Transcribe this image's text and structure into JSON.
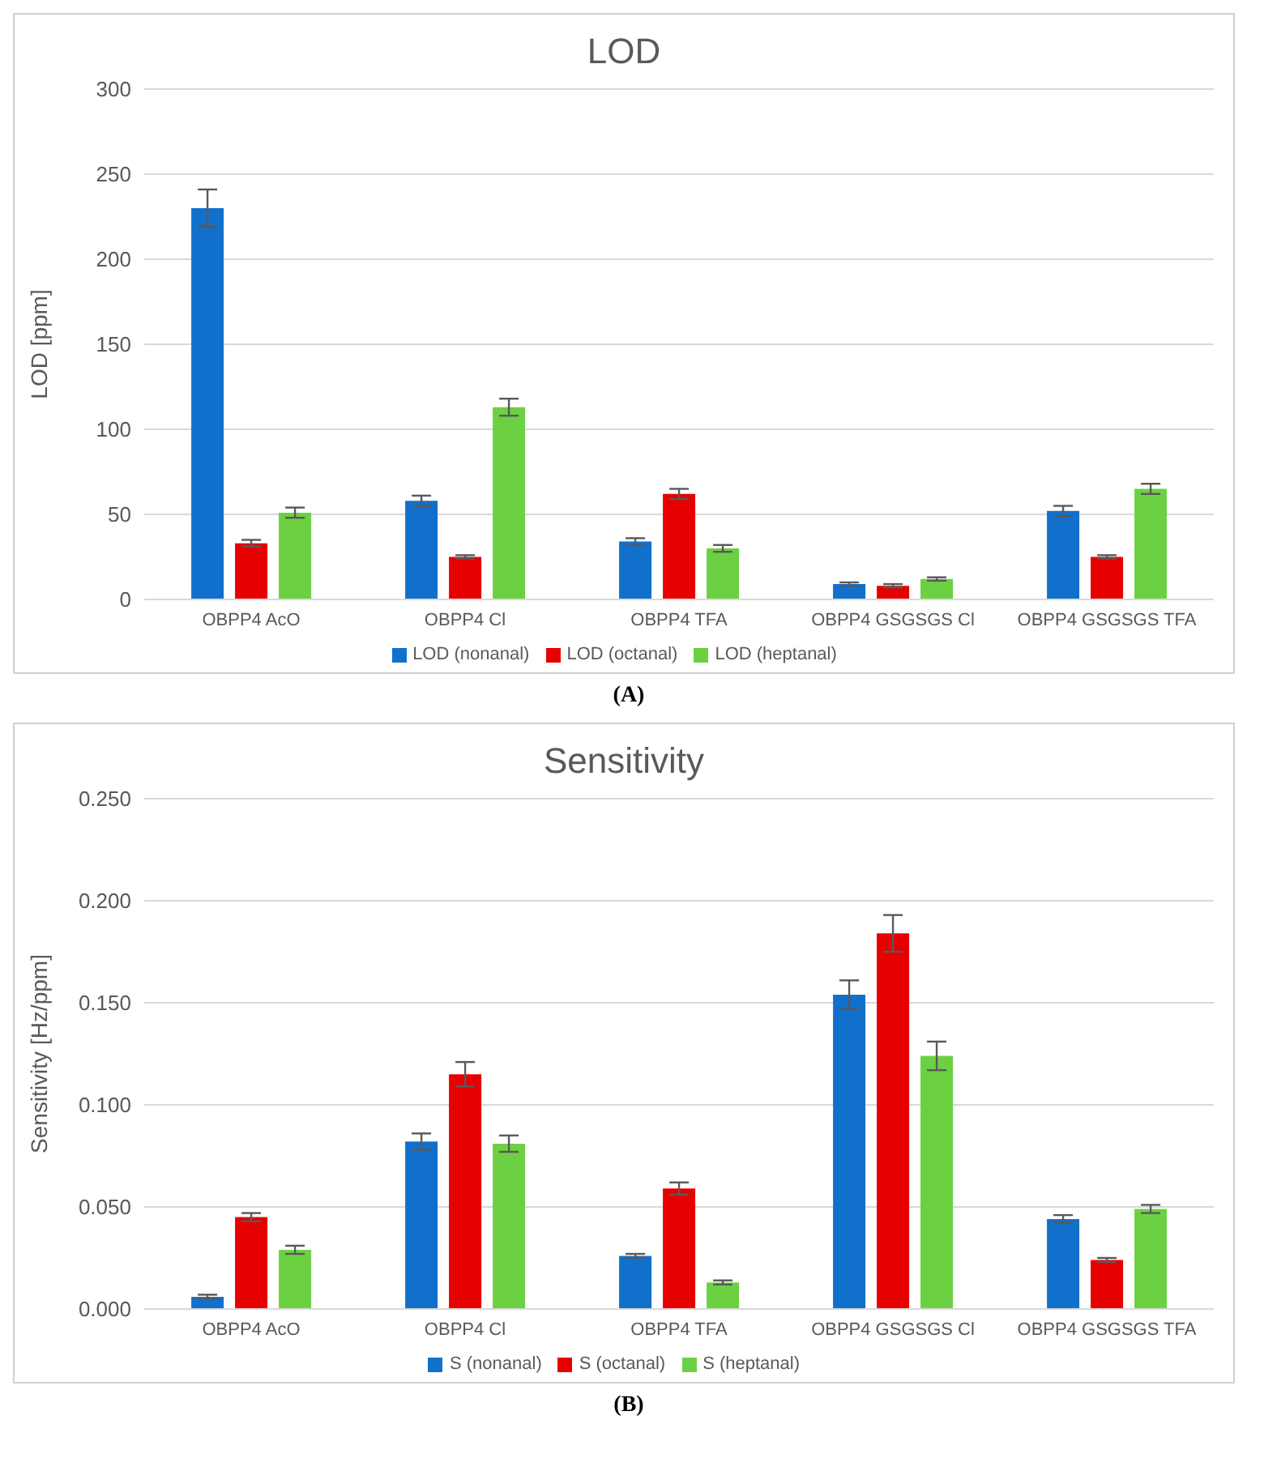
{
  "chart_data": [
    {
      "type": "bar",
      "title": "LOD",
      "ylabel": "LOD [ppm]",
      "categories": [
        "OBPP4 AcO",
        "OBPP4 Cl",
        "OBPP4 TFA",
        "OBPP4 GSGSGS Cl",
        "OBPP4 GSGSGS TFA"
      ],
      "series": [
        {
          "name": "LOD (nonanal)",
          "color": "#1170cc",
          "values": [
            230,
            58,
            34,
            9,
            52
          ],
          "errors": [
            11,
            3,
            2,
            1,
            3
          ]
        },
        {
          "name": "LOD (octanal)",
          "color": "#e60000",
          "values": [
            33,
            25,
            62,
            8,
            25
          ],
          "errors": [
            2,
            1,
            3,
            1,
            1
          ]
        },
        {
          "name": "LOD (heptanal)",
          "color": "#6cd142",
          "values": [
            51,
            113,
            30,
            12,
            65
          ],
          "errors": [
            3,
            5,
            2,
            1,
            3
          ]
        }
      ],
      "ylim": [
        0,
        300
      ],
      "yticks": [
        0,
        50,
        100,
        150,
        200,
        250,
        300
      ],
      "grid": "y",
      "legend": "bottom",
      "annotations": [
        "(A)"
      ]
    },
    {
      "type": "bar",
      "title": "Sensitivity",
      "ylabel": "Sensitivity [Hz/ppm]",
      "categories": [
        "OBPP4 AcO",
        "OBPP4 Cl",
        "OBPP4 TFA",
        "OBPP4 GSGSGS Cl",
        "OBPP4 GSGSGS TFA"
      ],
      "series": [
        {
          "name": "S (nonanal)",
          "color": "#1170cc",
          "values": [
            0.006,
            0.082,
            0.026,
            0.154,
            0.044
          ],
          "errors": [
            0.001,
            0.004,
            0.001,
            0.007,
            0.002
          ]
        },
        {
          "name": "S (octanal)",
          "color": "#e60000",
          "values": [
            0.045,
            0.115,
            0.059,
            0.184,
            0.024
          ],
          "errors": [
            0.002,
            0.006,
            0.003,
            0.009,
            0.001
          ]
        },
        {
          "name": "S (heptanal)",
          "color": "#6cd142",
          "values": [
            0.029,
            0.081,
            0.013,
            0.124,
            0.049
          ],
          "errors": [
            0.002,
            0.004,
            0.001,
            0.007,
            0.002
          ]
        }
      ],
      "ylim": [
        0,
        0.25
      ],
      "yticks": [
        {
          "value": 0,
          "label": "0.000"
        },
        {
          "value": 0.05,
          "label": "0.050"
        },
        {
          "value": 0.1,
          "label": "0.100"
        },
        {
          "value": 0.15,
          "label": "0.150"
        },
        {
          "value": 0.2,
          "label": "0.200"
        },
        {
          "value": 0.25,
          "label": "0.250"
        }
      ],
      "grid": "y",
      "legend": "bottom",
      "annotations": [
        "(B)"
      ]
    }
  ]
}
